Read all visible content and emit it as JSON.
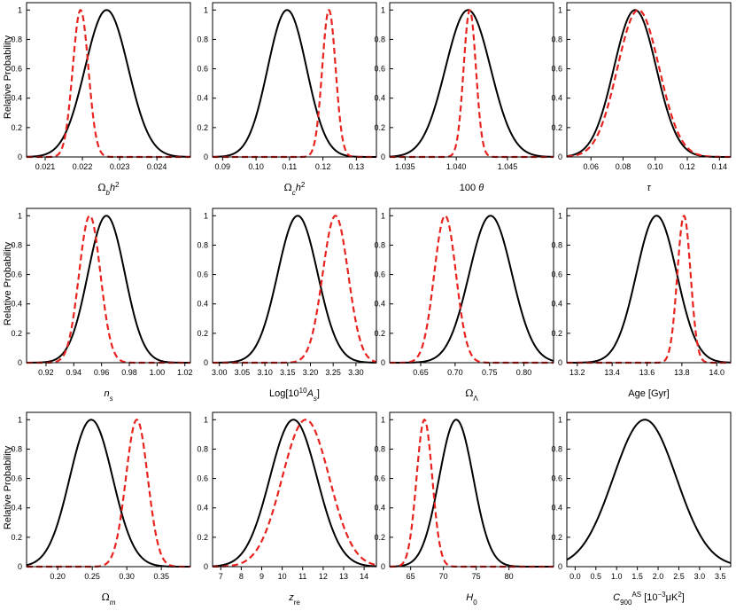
{
  "figure": {
    "ylabel": "Relative Probability"
  },
  "chart_data": [
    {
      "type": "line",
      "xlim": [
        0.0205,
        0.0249
      ],
      "ylim": [
        0,
        1.05
      ],
      "xticks": [
        0.021,
        0.022,
        0.023,
        0.024
      ],
      "xtick_labels": [
        "0.021",
        "0.022",
        "0.023",
        "0.024"
      ],
      "yticks": [
        0,
        0.2,
        0.4,
        0.6,
        0.8,
        1
      ],
      "ytick_labels": [
        "0",
        "0.2",
        "0.4",
        "0.6",
        "0.8",
        "1"
      ],
      "xlabel_parts": [
        {
          "t": "Ω",
          "s": "gr"
        },
        {
          "t": "b",
          "s": "sub-it"
        },
        {
          "t": "h",
          "s": "it"
        },
        {
          "t": "2",
          "s": "sup"
        }
      ],
      "series": [
        {
          "name": "black",
          "color": "#000000",
          "dashed": false,
          "mu": 0.02265,
          "sigma": 0.00058
        },
        {
          "name": "red",
          "color": "#e8231f",
          "dashed": true,
          "mu": 0.02195,
          "sigma": 0.00021
        }
      ]
    },
    {
      "type": "line",
      "xlim": [
        0.087,
        0.136
      ],
      "ylim": [
        0,
        1.05
      ],
      "xticks": [
        0.09,
        0.1,
        0.11,
        0.12,
        0.13
      ],
      "xtick_labels": [
        "0.09",
        "0.10",
        "0.11",
        "0.12",
        "0.13"
      ],
      "yticks": [
        0,
        0.2,
        0.4,
        0.6,
        0.8,
        1
      ],
      "ytick_labels": [
        "0",
        "0.2",
        "0.4",
        "0.6",
        "0.8",
        "1"
      ],
      "xlabel_parts": [
        {
          "t": "Ω",
          "s": "gr"
        },
        {
          "t": "c",
          "s": "sub-it"
        },
        {
          "t": "h",
          "s": "it"
        },
        {
          "t": "2",
          "s": "sup"
        }
      ],
      "series": [
        {
          "name": "black",
          "color": "#000000",
          "dashed": false,
          "mu": 0.1093,
          "sigma": 0.0058
        },
        {
          "name": "red",
          "color": "#e8231f",
          "dashed": true,
          "mu": 0.1218,
          "sigma": 0.002
        }
      ]
    },
    {
      "type": "line",
      "xlim": [
        1.0335,
        1.0495
      ],
      "ylim": [
        0,
        1.05
      ],
      "xticks": [
        1.035,
        1.04,
        1.045
      ],
      "xtick_labels": [
        "1.035",
        "1.040",
        "1.045"
      ],
      "yticks": [
        0,
        0.2,
        0.4,
        0.6,
        0.8,
        1
      ],
      "ytick_labels": [
        "0",
        "0.2",
        "0.4",
        "0.6",
        "0.8",
        "1"
      ],
      "xlabel_parts": [
        {
          "t": "100 ",
          "s": ""
        },
        {
          "t": "θ",
          "s": "it"
        }
      ],
      "series": [
        {
          "name": "black",
          "color": "#000000",
          "dashed": false,
          "mu": 1.04115,
          "sigma": 0.0022
        },
        {
          "name": "red",
          "color": "#e8231f",
          "dashed": true,
          "mu": 1.04132,
          "sigma": 0.0006
        }
      ]
    },
    {
      "type": "line",
      "xlim": [
        0.045,
        0.147
      ],
      "ylim": [
        0,
        1.05
      ],
      "xticks": [
        0.06,
        0.08,
        0.1,
        0.12,
        0.14
      ],
      "xtick_labels": [
        "0.06",
        "0.08",
        "0.10",
        "0.12",
        "0.14"
      ],
      "yticks": [
        0,
        0.2,
        0.4,
        0.6,
        0.8,
        1
      ],
      "ytick_labels": [
        "0",
        "0.2",
        "0.4",
        "0.6",
        "0.8",
        "1"
      ],
      "xlabel_parts": [
        {
          "t": "τ",
          "s": "it"
        }
      ],
      "series": [
        {
          "name": "black",
          "color": "#000000",
          "dashed": false,
          "mu": 0.0875,
          "sigma": 0.0132
        },
        {
          "name": "red",
          "color": "#e8231f",
          "dashed": true,
          "mu": 0.0895,
          "sigma": 0.013
        }
      ]
    },
    {
      "type": "line",
      "xlim": [
        0.906,
        1.024
      ],
      "ylim": [
        0,
        1.05
      ],
      "xticks": [
        0.92,
        0.94,
        0.96,
        0.98,
        1.0,
        1.02
      ],
      "xtick_labels": [
        "0.92",
        "0.94",
        "0.96",
        "0.98",
        "1.00",
        "1.02"
      ],
      "yticks": [
        0,
        0.2,
        0.4,
        0.6,
        0.8,
        1
      ],
      "ytick_labels": [
        "0",
        "0.2",
        "0.4",
        "0.6",
        "0.8",
        "1"
      ],
      "xlabel_parts": [
        {
          "t": "n",
          "s": "it"
        },
        {
          "t": "s",
          "s": "sub-it"
        }
      ],
      "series": [
        {
          "name": "black",
          "color": "#000000",
          "dashed": false,
          "mu": 0.9635,
          "sigma": 0.0133
        },
        {
          "name": "red",
          "color": "#e8231f",
          "dashed": true,
          "mu": 0.9515,
          "sigma": 0.0077
        }
      ]
    },
    {
      "type": "line",
      "xlim": [
        2.985,
        3.345
      ],
      "ylim": [
        0,
        1.05
      ],
      "xticks": [
        3.0,
        3.05,
        3.1,
        3.15,
        3.2,
        3.25,
        3.3
      ],
      "xtick_labels": [
        "3.00",
        "3.05",
        "3.10",
        "3.15",
        "3.20",
        "3.25",
        "3.30"
      ],
      "yticks": [
        0,
        0.2,
        0.4,
        0.6,
        0.8,
        1
      ],
      "ytick_labels": [
        "0",
        "0.2",
        "0.4",
        "0.6",
        "0.8",
        "1"
      ],
      "xlabel_parts": [
        {
          "t": "Log[10",
          "s": ""
        },
        {
          "t": "10",
          "s": "sup"
        },
        {
          "t": "A",
          "s": "it"
        },
        {
          "t": "s",
          "s": "sub-it"
        },
        {
          "t": "]",
          "s": ""
        }
      ],
      "series": [
        {
          "name": "black",
          "color": "#000000",
          "dashed": false,
          "mu": 3.172,
          "sigma": 0.044
        },
        {
          "name": "red",
          "color": "#e8231f",
          "dashed": true,
          "mu": 3.255,
          "sigma": 0.028
        }
      ]
    },
    {
      "type": "line",
      "xlim": [
        0.605,
        0.843
      ],
      "ylim": [
        0,
        1.05
      ],
      "xticks": [
        0.65,
        0.7,
        0.75,
        0.8
      ],
      "xtick_labels": [
        "0.65",
        "0.70",
        "0.75",
        "0.80"
      ],
      "yticks": [
        0,
        0.2,
        0.4,
        0.6,
        0.8,
        1
      ],
      "ytick_labels": [
        "0",
        "0.2",
        "0.4",
        "0.6",
        "0.8",
        "1"
      ],
      "xlabel_parts": [
        {
          "t": "Ω",
          "s": "gr"
        },
        {
          "t": "Λ",
          "s": "sub"
        }
      ],
      "series": [
        {
          "name": "black",
          "color": "#000000",
          "dashed": false,
          "mu": 0.7515,
          "sigma": 0.031
        },
        {
          "name": "red",
          "color": "#e8231f",
          "dashed": true,
          "mu": 0.6855,
          "sigma": 0.0158
        }
      ]
    },
    {
      "type": "line",
      "xlim": [
        13.14,
        14.08
      ],
      "ylim": [
        0,
        1.05
      ],
      "xticks": [
        13.2,
        13.4,
        13.6,
        13.8,
        14.0
      ],
      "xtick_labels": [
        "13.2",
        "13.4",
        "13.6",
        "13.8",
        "14.0"
      ],
      "yticks": [
        0,
        0.2,
        0.4,
        0.6,
        0.8,
        1
      ],
      "ytick_labels": [
        "0",
        "0.2",
        "0.4",
        "0.6",
        "0.8",
        "1"
      ],
      "xlabel_parts": [
        {
          "t": "Age [Gyr]",
          "s": ""
        }
      ],
      "series": [
        {
          "name": "black",
          "color": "#000000",
          "dashed": false,
          "mu": 13.655,
          "sigma": 0.116
        },
        {
          "name": "red",
          "color": "#e8231f",
          "dashed": true,
          "mu": 13.812,
          "sigma": 0.038
        }
      ]
    },
    {
      "type": "line",
      "xlim": [
        0.155,
        0.392
      ],
      "ylim": [
        0,
        1.05
      ],
      "xticks": [
        0.2,
        0.25,
        0.3,
        0.35
      ],
      "xtick_labels": [
        "0.20",
        "0.25",
        "0.30",
        "0.35"
      ],
      "yticks": [
        0,
        0.2,
        0.4,
        0.6,
        0.8,
        1
      ],
      "ytick_labels": [
        "0",
        "0.2",
        "0.4",
        "0.6",
        "0.8",
        "1"
      ],
      "xlabel_parts": [
        {
          "t": "Ω",
          "s": "gr"
        },
        {
          "t": "m",
          "s": "sub-it"
        }
      ],
      "series": [
        {
          "name": "black",
          "color": "#000000",
          "dashed": false,
          "mu": 0.2485,
          "sigma": 0.031
        },
        {
          "name": "red",
          "color": "#e8231f",
          "dashed": true,
          "mu": 0.3145,
          "sigma": 0.0158
        }
      ]
    },
    {
      "type": "line",
      "xlim": [
        6.6,
        14.6
      ],
      "ylim": [
        0,
        1.05
      ],
      "xticks": [
        7,
        8,
        9,
        10,
        11,
        12,
        13,
        14
      ],
      "xtick_labels": [
        "7",
        "8",
        "9",
        "10",
        "11",
        "12",
        "13",
        "14"
      ],
      "yticks": [
        0,
        0.2,
        0.4,
        0.6,
        0.8,
        1
      ],
      "ytick_labels": [
        "0",
        "0.2",
        "0.4",
        "0.6",
        "0.8",
        "1"
      ],
      "xlabel_parts": [
        {
          "t": "z",
          "s": "it"
        },
        {
          "t": "re",
          "s": "sub"
        }
      ],
      "series": [
        {
          "name": "black",
          "color": "#000000",
          "dashed": false,
          "mu": 10.55,
          "sigma": 1.15
        },
        {
          "name": "red",
          "color": "#e8231f",
          "dashed": true,
          "mu": 11.15,
          "sigma": 1.15
        }
      ]
    },
    {
      "type": "line",
      "xlim": [
        61.8,
        86.8
      ],
      "ylim": [
        0,
        1.05
      ],
      "xticks": [
        65,
        70,
        75,
        80
      ],
      "xtick_labels": [
        "65",
        "70",
        "75",
        "80"
      ],
      "yticks": [
        0,
        0.2,
        0.4,
        0.6,
        0.8,
        1
      ],
      "ytick_labels": [
        "0",
        "0.2",
        "0.4",
        "0.6",
        "0.8",
        "1"
      ],
      "xlabel_parts": [
        {
          "t": "H",
          "s": "it"
        },
        {
          "t": "0",
          "s": "sub"
        }
      ],
      "series": [
        {
          "name": "black",
          "color": "#000000",
          "dashed": false,
          "mu": 71.95,
          "sigma": 2.6
        },
        {
          "name": "red",
          "color": "#e8231f",
          "dashed": true,
          "mu": 67.1,
          "sigma": 1.2
        }
      ]
    },
    {
      "type": "line",
      "xlim": [
        -0.2,
        3.75
      ],
      "ylim": [
        0,
        1.05
      ],
      "xticks": [
        0,
        0.5,
        1.0,
        1.5,
        2.0,
        2.5,
        3.0,
        3.5
      ],
      "xtick_labels": [
        "0.0",
        "0.5",
        "1.0",
        "1.5",
        "2.0",
        "2.5",
        "3.0",
        "3.5"
      ],
      "yticks": [
        0,
        0.2,
        0.4,
        0.6,
        0.8,
        1
      ],
      "ytick_labels": [
        "0",
        "0.2",
        "0.4",
        "0.6",
        "0.8",
        "1"
      ],
      "xlabel_parts": [
        {
          "t": "C",
          "s": "it"
        },
        {
          "t": "900",
          "s": "sub"
        },
        {
          "t": "AS",
          "s": "sup"
        },
        {
          "t": " [10",
          "s": ""
        },
        {
          "t": "−3",
          "s": "sup"
        },
        {
          "t": "μK",
          "s": ""
        },
        {
          "t": "2",
          "s": "sup"
        },
        {
          "t": "]",
          "s": ""
        }
      ],
      "series": [
        {
          "name": "black",
          "color": "#000000",
          "dashed": false,
          "mu": 1.68,
          "sigma": 0.76
        }
      ]
    }
  ]
}
